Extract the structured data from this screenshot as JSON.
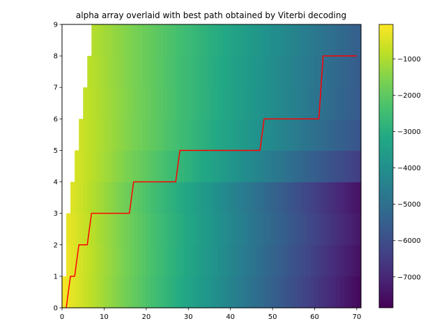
{
  "chart_data": {
    "type": "heatmap",
    "title": "alpha array overlaid with best path obtained by Viterbi decoding",
    "xlim": [
      0,
      71
    ],
    "ylim": [
      0,
      9
    ],
    "x_ticks": [
      0,
      10,
      20,
      30,
      40,
      50,
      60,
      70
    ],
    "y_ticks": [
      0,
      1,
      2,
      3,
      4,
      5,
      6,
      7,
      8,
      9
    ],
    "colormap": "viridis",
    "grid": false,
    "colorbar": {
      "placement": "right",
      "range": [
        -7850,
        -50
      ],
      "ticks": [
        -1000,
        -2000,
        -3000,
        -4000,
        -5000,
        -6000,
        -7000
      ]
    },
    "heatmap_rows": [
      {
        "row": 0,
        "start_col": 0,
        "v0": -150,
        "slope": -107
      },
      {
        "row": 1,
        "start_col": 1,
        "v0": -250,
        "slope": -105
      },
      {
        "row": 2,
        "start_col": 1,
        "v0": -300,
        "slope": -102
      },
      {
        "row": 3,
        "start_col": 2,
        "v0": -450,
        "slope": -103
      },
      {
        "row": 4,
        "start_col": 3,
        "v0": -550,
        "slope": -88
      },
      {
        "row": 5,
        "start_col": 4,
        "v0": -650,
        "slope": -78
      },
      {
        "row": 6,
        "start_col": 5,
        "v0": -750,
        "slope": -75
      },
      {
        "row": 7,
        "start_col": 6,
        "v0": -850,
        "slope": -74
      },
      {
        "row": 8,
        "start_col": 7,
        "v0": -950,
        "slope": -72
      }
    ],
    "series": [
      {
        "type": "line",
        "color": "#ff0000",
        "x": [
          1,
          2,
          3,
          4,
          6,
          7,
          16,
          17,
          27,
          28,
          47,
          48,
          61,
          62,
          70
        ],
        "y": [
          0,
          1,
          1,
          2,
          2,
          3,
          3,
          4,
          4,
          5,
          5,
          6,
          6,
          8,
          8
        ]
      }
    ]
  }
}
